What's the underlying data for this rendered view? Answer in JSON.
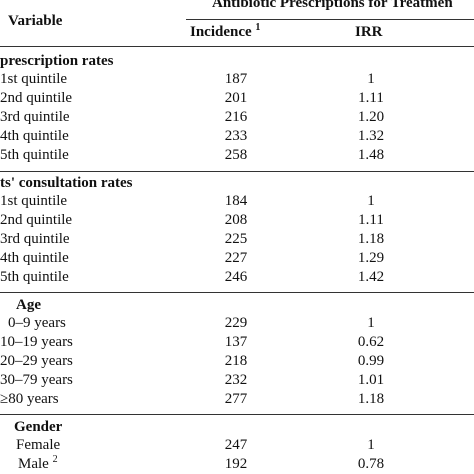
{
  "header": {
    "variable": "Variable",
    "span_title": "Antibiotic Prescriptions for Treatmen",
    "incidence": "Incidence",
    "incidence_sup": "1",
    "irr": "IRR"
  },
  "sections": [
    {
      "title": "prescription rates",
      "rows": [
        {
          "label": "1st quintile",
          "incidence": "187",
          "irr": "1"
        },
        {
          "label": "2nd quintile",
          "incidence": "201",
          "irr": "1.11"
        },
        {
          "label": "3rd quintile",
          "incidence": "216",
          "irr": "1.20"
        },
        {
          "label": "4th quintile",
          "incidence": "233",
          "irr": "1.32"
        },
        {
          "label": "5th quintile",
          "incidence": "258",
          "irr": "1.48"
        }
      ]
    },
    {
      "title": "ts' consultation rates",
      "rows": [
        {
          "label": "1st quintile",
          "incidence": "184",
          "irr": "1"
        },
        {
          "label": "2nd quintile",
          "incidence": "208",
          "irr": "1.11"
        },
        {
          "label": "3rd quintile",
          "incidence": "225",
          "irr": "1.18"
        },
        {
          "label": "4th quintile",
          "incidence": "227",
          "irr": "1.29"
        },
        {
          "label": "5th quintile",
          "incidence": "246",
          "irr": "1.42"
        }
      ]
    },
    {
      "title": "Age",
      "rows": [
        {
          "label": "0–9 years",
          "incidence": "229",
          "irr": "1"
        },
        {
          "label": "10–19 years",
          "incidence": "137",
          "irr": "0.62"
        },
        {
          "label": "20–29 years",
          "incidence": "218",
          "irr": "0.99"
        },
        {
          "label": "30–79 years",
          "incidence": "232",
          "irr": "1.01"
        },
        {
          "label": "≥80 years",
          "incidence": "277",
          "irr": "1.18"
        }
      ]
    },
    {
      "title": "Gender",
      "rows": [
        {
          "label": "Female",
          "incidence": "247",
          "irr": "1"
        },
        {
          "label": "Male",
          "label_sup": "2",
          "incidence": "192",
          "irr": "0.78"
        }
      ]
    }
  ]
}
